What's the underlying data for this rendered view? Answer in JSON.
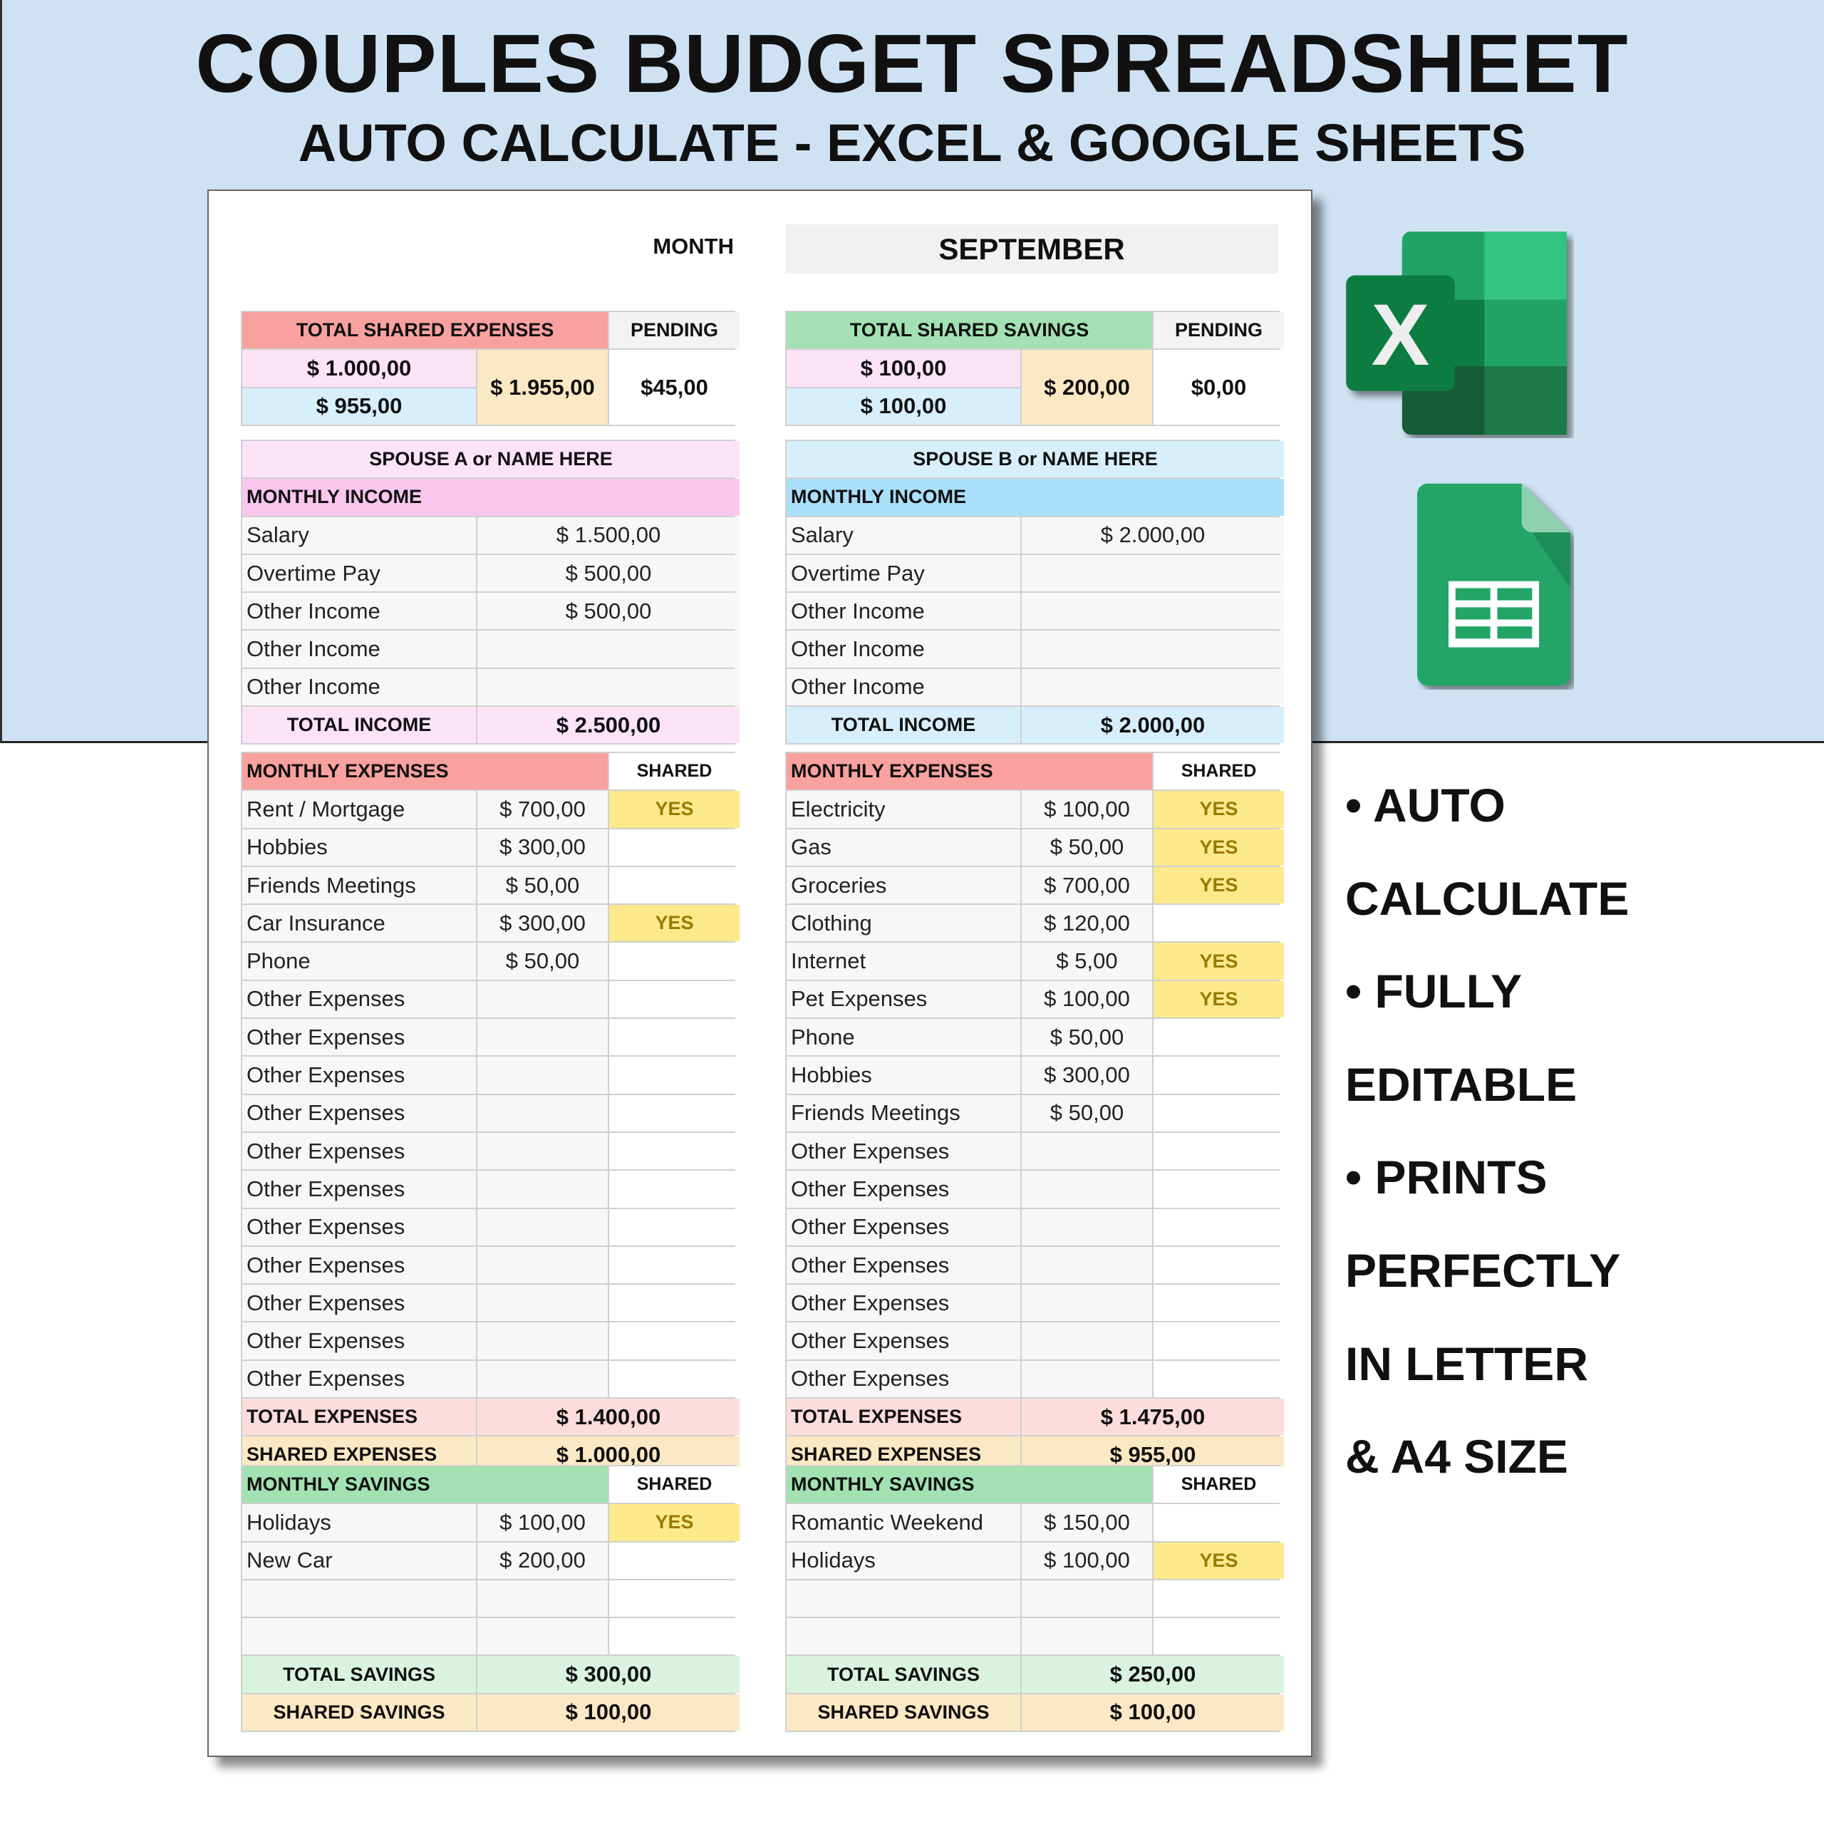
{
  "header": {
    "title": "COUPLES BUDGET SPREADSHEET",
    "subtitle": "AUTO CALCULATE - EXCEL & GOOGLE SHEETS"
  },
  "month": {
    "label": "MONTH",
    "value": "SEPTEMBER"
  },
  "summary": {
    "expenses": {
      "title": "TOTAL SHARED EXPENSES",
      "pending_label": "PENDING",
      "spouse_a": "$ 1.000,00",
      "spouse_b": "$ 955,00",
      "total": "$ 1.955,00",
      "pending": "$45,00"
    },
    "savings": {
      "title": "TOTAL SHARED SAVINGS",
      "pending_label": "PENDING",
      "spouse_a": "$ 100,00",
      "spouse_b": "$ 100,00",
      "total": "$ 200,00",
      "pending": "$0,00"
    }
  },
  "spouses": [
    {
      "name": "SPOUSE A or NAME HERE",
      "income_title": "MONTHLY INCOME",
      "income": [
        {
          "label": "Salary",
          "value": "$ 1.500,00"
        },
        {
          "label": "Overtime Pay",
          "value": "$ 500,00"
        },
        {
          "label": "Other Income",
          "value": "$ 500,00"
        },
        {
          "label": "Other Income",
          "value": ""
        },
        {
          "label": "Other Income",
          "value": ""
        }
      ],
      "total_income_label": "TOTAL INCOME",
      "total_income": "$ 2.500,00",
      "expenses_title": "MONTHLY EXPENSES",
      "shared_label": "SHARED",
      "expenses": [
        {
          "label": "Rent / Mortgage",
          "value": "$ 700,00",
          "shared": "YES"
        },
        {
          "label": "Hobbies",
          "value": "$ 300,00",
          "shared": ""
        },
        {
          "label": "Friends Meetings",
          "value": "$ 50,00",
          "shared": ""
        },
        {
          "label": "Car Insurance",
          "value": "$ 300,00",
          "shared": "YES"
        },
        {
          "label": "Phone",
          "value": "$ 50,00",
          "shared": ""
        },
        {
          "label": "Other Expenses",
          "value": "",
          "shared": ""
        },
        {
          "label": "Other Expenses",
          "value": "",
          "shared": ""
        },
        {
          "label": "Other Expenses",
          "value": "",
          "shared": ""
        },
        {
          "label": "Other Expenses",
          "value": "",
          "shared": ""
        },
        {
          "label": "Other Expenses",
          "value": "",
          "shared": ""
        },
        {
          "label": "Other Expenses",
          "value": "",
          "shared": ""
        },
        {
          "label": "Other Expenses",
          "value": "",
          "shared": ""
        },
        {
          "label": "Other Expenses",
          "value": "",
          "shared": ""
        },
        {
          "label": "Other Expenses",
          "value": "",
          "shared": ""
        },
        {
          "label": "Other Expenses",
          "value": "",
          "shared": ""
        },
        {
          "label": "Other Expenses",
          "value": "",
          "shared": ""
        }
      ],
      "total_expenses_label": "TOTAL EXPENSES",
      "total_expenses": "$ 1.400,00",
      "shared_expenses_label": "SHARED EXPENSES",
      "shared_expenses": "$ 1.000,00",
      "savings_title": "MONTHLY SAVINGS",
      "savings": [
        {
          "label": "Holidays",
          "value": "$ 100,00",
          "shared": "YES"
        },
        {
          "label": "New Car",
          "value": "$ 200,00",
          "shared": ""
        },
        {
          "label": "",
          "value": "",
          "shared": ""
        },
        {
          "label": "",
          "value": "",
          "shared": ""
        }
      ],
      "total_savings_label": "TOTAL SAVINGS",
      "total_savings": "$ 300,00",
      "shared_savings_label": "SHARED SAVINGS",
      "shared_savings": "$ 100,00"
    },
    {
      "name": "SPOUSE B or NAME HERE",
      "income_title": "MONTHLY INCOME",
      "income": [
        {
          "label": "Salary",
          "value": "$ 2.000,00"
        },
        {
          "label": "Overtime Pay",
          "value": ""
        },
        {
          "label": "Other Income",
          "value": ""
        },
        {
          "label": "Other Income",
          "value": ""
        },
        {
          "label": "Other Income",
          "value": ""
        }
      ],
      "total_income_label": "TOTAL INCOME",
      "total_income": "$ 2.000,00",
      "expenses_title": "MONTHLY EXPENSES",
      "shared_label": "SHARED",
      "expenses": [
        {
          "label": "Electricity",
          "value": "$ 100,00",
          "shared": "YES"
        },
        {
          "label": "Gas",
          "value": "$ 50,00",
          "shared": "YES"
        },
        {
          "label": "Groceries",
          "value": "$ 700,00",
          "shared": "YES"
        },
        {
          "label": "Clothing",
          "value": "$ 120,00",
          "shared": ""
        },
        {
          "label": "Internet",
          "value": "$ 5,00",
          "shared": "YES"
        },
        {
          "label": "Pet Expenses",
          "value": "$ 100,00",
          "shared": "YES"
        },
        {
          "label": "Phone",
          "value": "$ 50,00",
          "shared": ""
        },
        {
          "label": "Hobbies",
          "value": "$ 300,00",
          "shared": ""
        },
        {
          "label": "Friends Meetings",
          "value": "$ 50,00",
          "shared": ""
        },
        {
          "label": "Other Expenses",
          "value": "",
          "shared": ""
        },
        {
          "label": "Other Expenses",
          "value": "",
          "shared": ""
        },
        {
          "label": "Other Expenses",
          "value": "",
          "shared": ""
        },
        {
          "label": "Other Expenses",
          "value": "",
          "shared": ""
        },
        {
          "label": "Other Expenses",
          "value": "",
          "shared": ""
        },
        {
          "label": "Other Expenses",
          "value": "",
          "shared": ""
        },
        {
          "label": "Other Expenses",
          "value": "",
          "shared": ""
        }
      ],
      "total_expenses_label": "TOTAL EXPENSES",
      "total_expenses": "$ 1.475,00",
      "shared_expenses_label": "SHARED EXPENSES",
      "shared_expenses": "$ 955,00",
      "savings_title": "MONTHLY SAVINGS",
      "savings": [
        {
          "label": "Romantic Weekend",
          "value": "$ 150,00",
          "shared": ""
        },
        {
          "label": "Holidays",
          "value": "$ 100,00",
          "shared": "YES"
        },
        {
          "label": "",
          "value": "",
          "shared": ""
        },
        {
          "label": "",
          "value": "",
          "shared": ""
        }
      ],
      "total_savings_label": "TOTAL SAVINGS",
      "total_savings": "$ 250,00",
      "shared_savings_label": "SHARED SAVINGS",
      "shared_savings": "$ 100,00"
    }
  ],
  "features": [
    "• AUTO",
    "CALCULATE",
    "• FULLY",
    "EDITABLE",
    "• PRINTS",
    "PERFECTLY",
    "IN LETTER",
    "& A4 SIZE"
  ],
  "icons": {
    "excel": "excel-icon",
    "sheets": "google-sheets-icon"
  },
  "colors": {
    "band": "#cfe2f3",
    "expenses_header": "#f9a19f",
    "savings_header": "#a2e2b2",
    "spouse_a": "#f9c6ee",
    "spouse_b": "#a9dff9",
    "shared_yes": "#fbe98c"
  }
}
